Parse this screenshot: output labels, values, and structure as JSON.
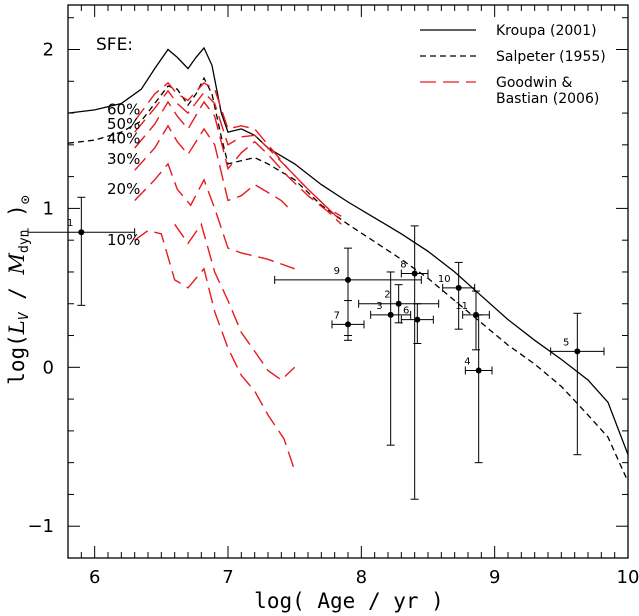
{
  "chart_data": {
    "type": "line",
    "xlabel": "log( Age / yr )",
    "ylabel_parts": [
      "log(",
      "L",
      "V",
      " / ",
      "M",
      "dyn",
      " )",
      "⊙"
    ],
    "xlim": [
      5.8,
      10.0
    ],
    "ylim": [
      -1.2,
      2.28
    ],
    "x_ticks": [
      6,
      7,
      8,
      9,
      10
    ],
    "y_ticks": [
      -1,
      0,
      1,
      2
    ],
    "grid": false,
    "legend_position": "top-right",
    "sfe_title": "SFE:",
    "legend": [
      {
        "label": "Kroupa (2001)",
        "style": "solid",
        "color": "#000000"
      },
      {
        "label": "Salpeter (1955)",
        "style": "dashed",
        "color": "#000000"
      },
      {
        "label": "Goodwin &",
        "label2": "Bastian (2006)",
        "style": "longdash",
        "color": "#e8191f"
      }
    ],
    "series": [
      {
        "name": "Kroupa (2001)",
        "style": "solid",
        "color": "#000000",
        "points": [
          [
            5.8,
            1.6
          ],
          [
            6.0,
            1.62
          ],
          [
            6.2,
            1.66
          ],
          [
            6.35,
            1.75
          ],
          [
            6.45,
            1.88
          ],
          [
            6.55,
            2.0
          ],
          [
            6.62,
            1.95
          ],
          [
            6.7,
            1.88
          ],
          [
            6.76,
            1.95
          ],
          [
            6.82,
            2.01
          ],
          [
            6.88,
            1.9
          ],
          [
            6.95,
            1.6
          ],
          [
            7.0,
            1.48
          ],
          [
            7.1,
            1.5
          ],
          [
            7.2,
            1.46
          ],
          [
            7.3,
            1.38
          ],
          [
            7.5,
            1.28
          ],
          [
            7.7,
            1.15
          ],
          [
            7.9,
            1.04
          ],
          [
            8.1,
            0.94
          ],
          [
            8.3,
            0.84
          ],
          [
            8.5,
            0.73
          ],
          [
            8.7,
            0.6
          ],
          [
            8.9,
            0.45
          ],
          [
            9.1,
            0.3
          ],
          [
            9.3,
            0.17
          ],
          [
            9.5,
            0.05
          ],
          [
            9.7,
            -0.08
          ],
          [
            9.85,
            -0.22
          ],
          [
            10.0,
            -0.55
          ]
        ]
      },
      {
        "name": "Salpeter (1955)",
        "style": "dashed",
        "color": "#000000",
        "points": [
          [
            5.8,
            1.41
          ],
          [
            6.0,
            1.43
          ],
          [
            6.2,
            1.48
          ],
          [
            6.35,
            1.55
          ],
          [
            6.45,
            1.66
          ],
          [
            6.55,
            1.77
          ],
          [
            6.62,
            1.75
          ],
          [
            6.7,
            1.65
          ],
          [
            6.76,
            1.72
          ],
          [
            6.82,
            1.82
          ],
          [
            6.88,
            1.72
          ],
          [
            6.95,
            1.45
          ],
          [
            7.0,
            1.28
          ],
          [
            7.1,
            1.3
          ],
          [
            7.2,
            1.32
          ],
          [
            7.3,
            1.28
          ],
          [
            7.5,
            1.18
          ],
          [
            7.7,
            1.02
          ],
          [
            7.9,
            0.9
          ],
          [
            8.1,
            0.79
          ],
          [
            8.3,
            0.68
          ],
          [
            8.5,
            0.56
          ],
          [
            8.7,
            0.42
          ],
          [
            8.9,
            0.28
          ],
          [
            9.1,
            0.14
          ],
          [
            9.3,
            0.02
          ],
          [
            9.5,
            -0.12
          ],
          [
            9.7,
            -0.3
          ],
          [
            9.85,
            -0.44
          ],
          [
            10.0,
            -0.72
          ]
        ]
      },
      {
        "name": "60%",
        "style": "longdash",
        "color": "#e8191f",
        "points": [
          [
            6.3,
            1.55
          ],
          [
            6.45,
            1.72
          ],
          [
            6.55,
            1.79
          ],
          [
            6.62,
            1.72
          ],
          [
            6.7,
            1.68
          ],
          [
            6.82,
            1.79
          ],
          [
            6.9,
            1.75
          ],
          [
            7.0,
            1.5
          ],
          [
            7.1,
            1.52
          ],
          [
            7.2,
            1.5
          ],
          [
            7.3,
            1.4
          ],
          [
            7.45,
            1.25
          ],
          [
            7.6,
            1.12
          ],
          [
            7.75,
            1.0
          ],
          [
            7.85,
            0.95
          ]
        ]
      },
      {
        "name": "50%",
        "style": "longdash",
        "color": "#e8191f",
        "points": [
          [
            6.3,
            1.48
          ],
          [
            6.45,
            1.63
          ],
          [
            6.55,
            1.74
          ],
          [
            6.62,
            1.66
          ],
          [
            6.7,
            1.6
          ],
          [
            6.82,
            1.73
          ],
          [
            6.9,
            1.66
          ],
          [
            7.0,
            1.4
          ],
          [
            7.1,
            1.45
          ],
          [
            7.2,
            1.46
          ],
          [
            7.3,
            1.38
          ],
          [
            7.45,
            1.25
          ],
          [
            7.6,
            1.12
          ],
          [
            7.75,
            1.0
          ],
          [
            7.85,
            0.92
          ]
        ]
      },
      {
        "name": "40%",
        "style": "longdash",
        "color": "#e8191f",
        "points": [
          [
            6.3,
            1.38
          ],
          [
            6.45,
            1.53
          ],
          [
            6.55,
            1.67
          ],
          [
            6.62,
            1.58
          ],
          [
            6.7,
            1.5
          ],
          [
            6.82,
            1.67
          ],
          [
            6.9,
            1.58
          ],
          [
            7.0,
            1.25
          ],
          [
            7.1,
            1.35
          ],
          [
            7.2,
            1.42
          ],
          [
            7.3,
            1.34
          ],
          [
            7.45,
            1.2
          ],
          [
            7.6,
            1.08
          ],
          [
            7.75,
            0.98
          ],
          [
            7.85,
            0.9
          ]
        ]
      },
      {
        "name": "30%",
        "style": "longdash",
        "color": "#e8191f",
        "points": [
          [
            6.3,
            1.24
          ],
          [
            6.45,
            1.38
          ],
          [
            6.55,
            1.52
          ],
          [
            6.62,
            1.42
          ],
          [
            6.7,
            1.34
          ],
          [
            6.82,
            1.5
          ],
          [
            6.9,
            1.4
          ],
          [
            7.0,
            1.05
          ],
          [
            7.1,
            1.08
          ],
          [
            7.2,
            1.15
          ],
          [
            7.3,
            1.1
          ],
          [
            7.4,
            1.05
          ],
          [
            7.48,
            0.98
          ]
        ]
      },
      {
        "name": "20%",
        "style": "longdash",
        "color": "#e8191f",
        "points": [
          [
            6.3,
            1.05
          ],
          [
            6.45,
            1.18
          ],
          [
            6.55,
            1.28
          ],
          [
            6.62,
            1.12
          ],
          [
            6.72,
            1.02
          ],
          [
            6.82,
            1.18
          ],
          [
            6.9,
            1.0
          ],
          [
            7.0,
            0.75
          ],
          [
            7.1,
            0.72
          ],
          [
            7.2,
            0.7
          ],
          [
            7.3,
            0.68
          ],
          [
            7.4,
            0.65
          ],
          [
            7.5,
            0.62
          ]
        ]
      },
      {
        "name": "10%",
        "style": "longdash",
        "color": "#e8191f",
        "points": [
          [
            6.3,
            0.8
          ],
          [
            6.4,
            0.86
          ],
          [
            6.5,
            0.84
          ],
          [
            6.6,
            0.55
          ],
          [
            6.7,
            0.5
          ],
          [
            6.82,
            0.62
          ],
          [
            6.9,
            0.35
          ],
          [
            7.0,
            0.12
          ],
          [
            7.1,
            -0.05
          ],
          [
            7.2,
            -0.15
          ],
          [
            7.3,
            -0.3
          ],
          [
            7.42,
            -0.45
          ],
          [
            7.5,
            -0.65
          ]
        ]
      },
      {
        "name": "20% low",
        "style": "longdash",
        "color": "#e8191f",
        "points": [
          [
            6.6,
            0.9
          ],
          [
            6.7,
            0.78
          ],
          [
            6.8,
            0.9
          ],
          [
            6.9,
            0.6
          ],
          [
            7.0,
            0.42
          ],
          [
            7.1,
            0.22
          ],
          [
            7.2,
            0.1
          ],
          [
            7.3,
            -0.02
          ],
          [
            7.4,
            -0.08
          ],
          [
            7.5,
            0.0
          ]
        ]
      }
    ],
    "sfe_labels": [
      "60%",
      "50%",
      "40%",
      "30%",
      "20%",
      "10%"
    ],
    "data_points": [
      {
        "label": "1",
        "x": 5.9,
        "y": 0.85,
        "xerr": 0.4,
        "yerr_lo": 0.46,
        "yerr_hi": 0.22
      },
      {
        "label": "2",
        "x": 8.28,
        "y": 0.4,
        "xerr": 0.3,
        "yerr_lo": 0.12,
        "yerr_hi": 0.12
      },
      {
        "label": "3",
        "x": 8.22,
        "y": 0.33,
        "xerr": 0.15,
        "yerr_lo": 0.82,
        "yerr_hi": 0.27
      },
      {
        "label": "4",
        "x": 8.88,
        "y": -0.02,
        "xerr": 0.1,
        "yerr_lo": 0.58,
        "yerr_hi": 0.35
      },
      {
        "label": "5",
        "x": 9.62,
        "y": 0.1,
        "xerr": 0.2,
        "yerr_lo": 0.65,
        "yerr_hi": 0.24
      },
      {
        "label": "6",
        "x": 8.42,
        "y": 0.3,
        "xerr": 0.12,
        "yerr_lo": 0.15,
        "yerr_hi": 0.1
      },
      {
        "label": "7",
        "x": 7.9,
        "y": 0.27,
        "xerr": 0.12,
        "yerr_lo": 0.1,
        "yerr_hi": 0.15
      },
      {
        "label": "8",
        "x": 8.4,
        "y": 0.59,
        "xerr": 0.1,
        "yerr_lo": 1.42,
        "yerr_hi": 0.3
      },
      {
        "label": "9",
        "x": 7.9,
        "y": 0.55,
        "xerr": 0.55,
        "yerr_lo": 0.35,
        "yerr_hi": 0.2
      },
      {
        "label": "10",
        "x": 8.73,
        "y": 0.5,
        "xerr": 0.12,
        "yerr_lo": 0.26,
        "yerr_hi": 0.16
      },
      {
        "label": "11",
        "x": 8.86,
        "y": 0.33,
        "xerr": 0.1,
        "yerr_lo": 0.22,
        "yerr_hi": 0.15
      }
    ]
  }
}
